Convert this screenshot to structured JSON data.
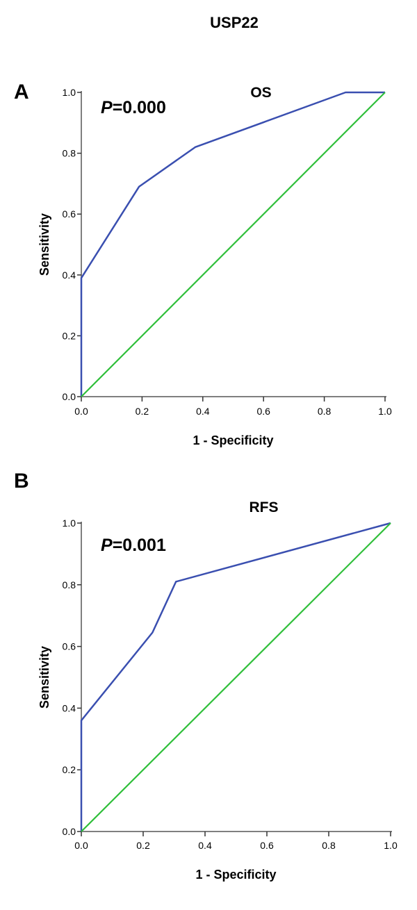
{
  "figure_title": "USP22",
  "colors": {
    "roc": "#3a4fb0",
    "reference": "#2fbf3a",
    "axis": "#7f7f7f"
  },
  "chart_data": [
    {
      "type": "line",
      "panel_label": "A",
      "title": "OS",
      "annotation": {
        "italic": "P",
        "text": "=0.000"
      },
      "xlabel": "1 - Specificity",
      "ylabel": "Sensitivity",
      "xlim": [
        0,
        1
      ],
      "ylim": [
        0,
        1
      ],
      "xticks": [
        "0.0",
        "0.2",
        "0.4",
        "0.6",
        "0.8",
        "1.0"
      ],
      "yticks": [
        "0.0",
        "0.2",
        "0.4",
        "0.6",
        "0.8",
        "1.0"
      ],
      "grid": false,
      "series": [
        {
          "x": [
            0,
            0,
            0.19,
            0.375,
            0.87,
            1.0
          ],
          "y": [
            0,
            0.39,
            0.69,
            0.82,
            1.0,
            1.0
          ]
        },
        {
          "x": [
            0,
            1
          ],
          "y": [
            0,
            1
          ]
        }
      ]
    },
    {
      "type": "line",
      "panel_label": "B",
      "title": "RFS",
      "annotation": {
        "italic": "P",
        "text": "=0.001"
      },
      "xlabel": "1 - Specificity",
      "ylabel": "Sensitivity",
      "xlim": [
        0,
        1
      ],
      "ylim": [
        0,
        1
      ],
      "xticks": [
        "0.0",
        "0.2",
        "0.4",
        "0.6",
        "0.8",
        "1.0"
      ],
      "yticks": [
        "0.0",
        "0.2",
        "0.4",
        "0.6",
        "0.8",
        "1.0"
      ],
      "grid": false,
      "series": [
        {
          "x": [
            0,
            0,
            0.23,
            0.306,
            1.0
          ],
          "y": [
            0,
            0.36,
            0.645,
            0.81,
            1.0
          ]
        },
        {
          "x": [
            0,
            1
          ],
          "y": [
            0,
            1
          ]
        }
      ]
    }
  ]
}
